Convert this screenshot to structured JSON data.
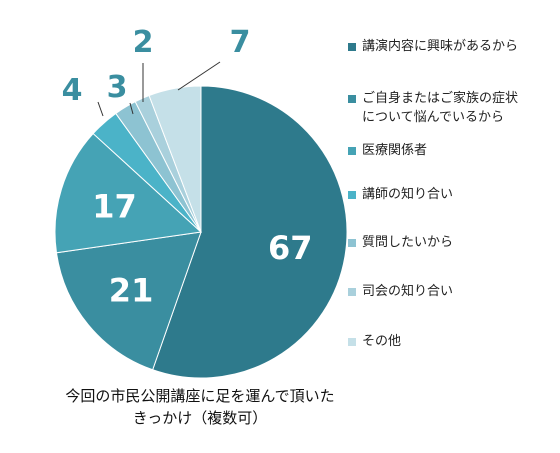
{
  "chart_data": {
    "type": "pie",
    "title_lines": [
      "今回の市民公開講座に足を運んで頂いた",
      "きっかけ（複数可）"
    ],
    "legend_position": "right",
    "slices": [
      {
        "label": "講演内容に興味があるから",
        "value": 67,
        "color": "#2e7a8c"
      },
      {
        "label": "ご自身またはご家族の症状について悩んでいるから",
        "label_lines": [
          "ご自身またはご家族の症状",
          "について悩んでいるから"
        ],
        "value": 21,
        "color": "#3a8ea0"
      },
      {
        "label": "医療関係者",
        "value": 17,
        "color": "#45a3b5"
      },
      {
        "label": "講師の知り合い",
        "value": 4,
        "color": "#4bb3c8"
      },
      {
        "label": "質問したいから",
        "value": 3,
        "color": "#8dc3d2"
      },
      {
        "label": "司会の知り合い",
        "value": 2,
        "color": "#a9d0dc"
      },
      {
        "label": "その他",
        "value": 7,
        "color": "#c5e0e8"
      }
    ],
    "data_label_color_inside": "#ffffff",
    "data_label_color_outside": "#3a8ea0"
  }
}
